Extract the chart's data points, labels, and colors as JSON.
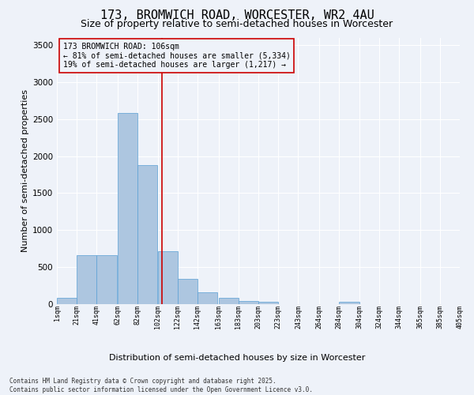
{
  "title1": "173, BROMWICH ROAD, WORCESTER, WR2 4AU",
  "title2": "Size of property relative to semi-detached houses in Worcester",
  "xlabel": "Distribution of semi-detached houses by size in Worcester",
  "ylabel": "Number of semi-detached properties",
  "annotation_title": "173 BROMWICH ROAD: 106sqm",
  "annotation_line1": "← 81% of semi-detached houses are smaller (5,334)",
  "annotation_line2": "19% of semi-detached houses are larger (1,217) →",
  "footnote1": "Contains HM Land Registry data © Crown copyright and database right 2025.",
  "footnote2": "Contains public sector information licensed under the Open Government Licence v3.0.",
  "bar_left_edges": [
    1,
    21,
    41,
    62,
    82,
    102,
    122,
    142,
    163,
    183,
    203,
    223,
    243,
    264,
    284,
    304,
    324,
    344,
    365,
    385
  ],
  "bar_widths": [
    20,
    20,
    20,
    20,
    20,
    20,
    20,
    20,
    20,
    20,
    20,
    20,
    20,
    20,
    20,
    20,
    20,
    20,
    20,
    20
  ],
  "bar_heights": [
    90,
    660,
    660,
    2580,
    1880,
    720,
    340,
    155,
    90,
    40,
    30,
    0,
    0,
    0,
    30,
    0,
    0,
    0,
    0,
    0
  ],
  "tick_labels": [
    "1sqm",
    "21sqm",
    "41sqm",
    "62sqm",
    "82sqm",
    "102sqm",
    "122sqm",
    "142sqm",
    "163sqm",
    "183sqm",
    "203sqm",
    "223sqm",
    "243sqm",
    "264sqm",
    "284sqm",
    "304sqm",
    "324sqm",
    "344sqm",
    "365sqm",
    "385sqm",
    "405sqm"
  ],
  "bar_color": "#adc6e0",
  "bar_edge_color": "#5a9fd4",
  "background_color": "#eef2f9",
  "grid_color": "#ffffff",
  "vline_x": 106,
  "vline_color": "#cc0000",
  "ylim": [
    0,
    3600
  ],
  "yticks": [
    0,
    500,
    1000,
    1500,
    2000,
    2500,
    3000,
    3500
  ],
  "annotation_box_color": "#cc0000",
  "title1_fontsize": 11,
  "title2_fontsize": 9,
  "xlabel_fontsize": 8,
  "ylabel_fontsize": 8
}
